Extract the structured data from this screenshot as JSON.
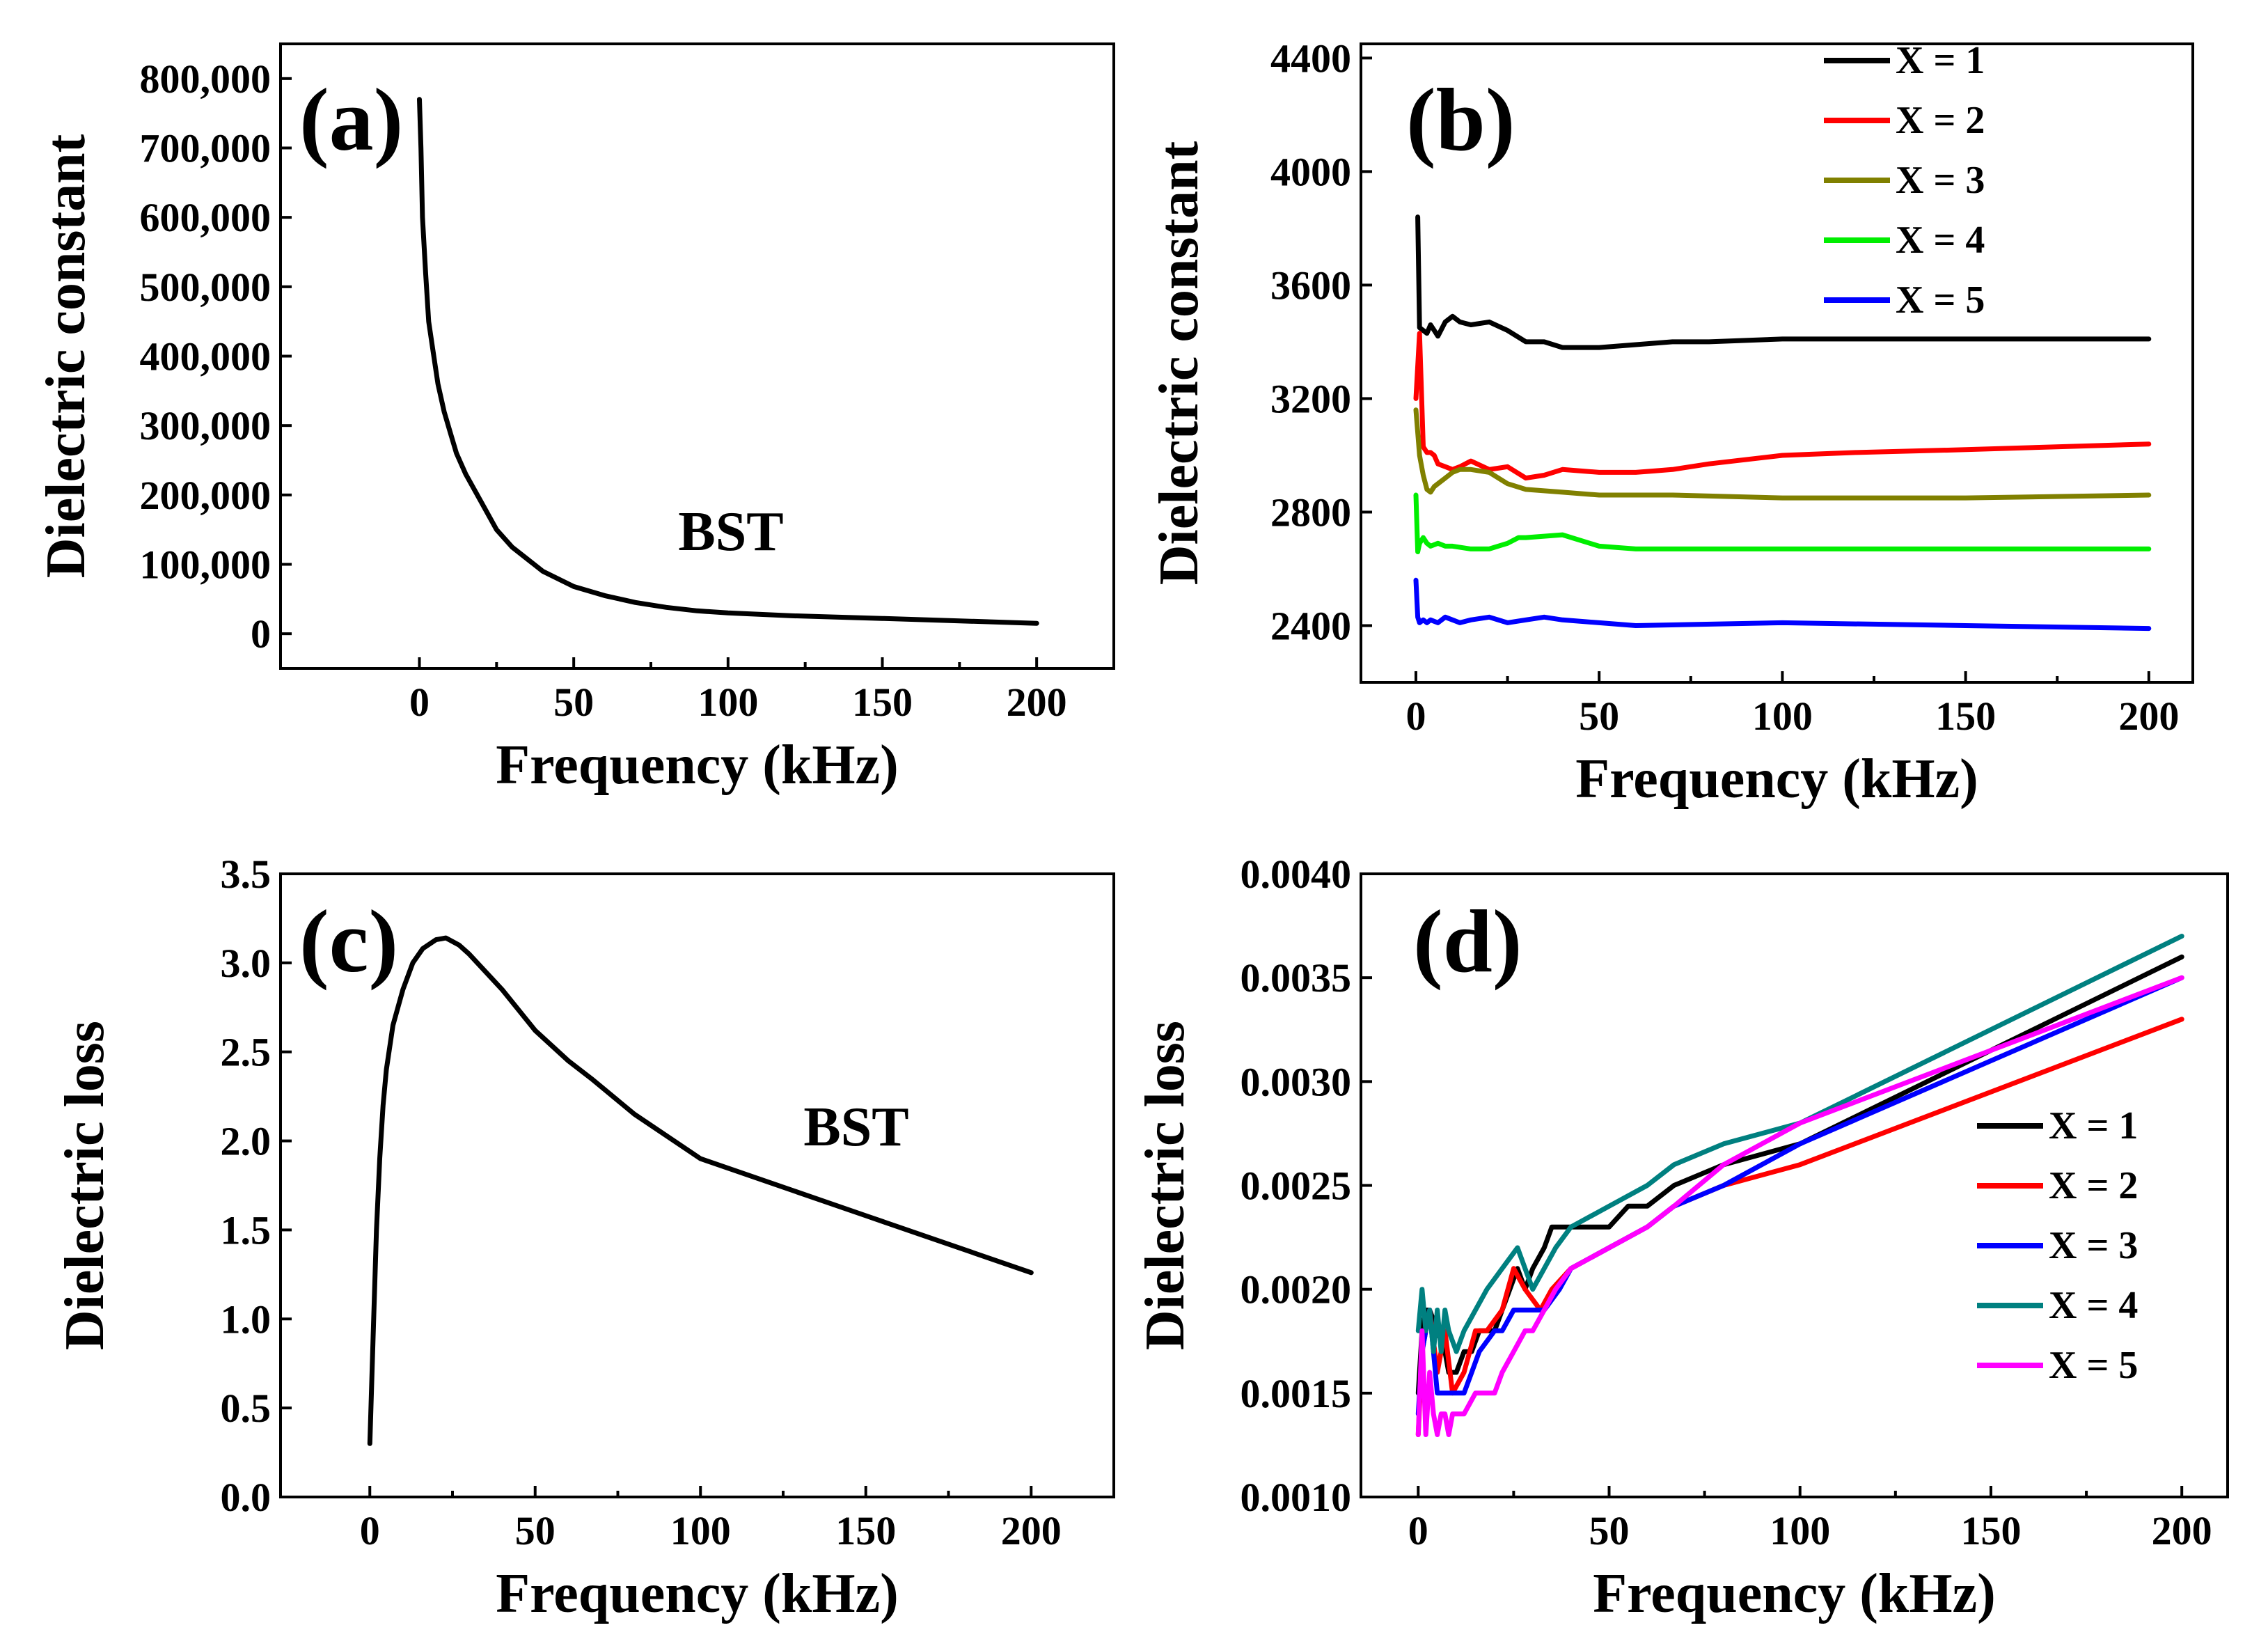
{
  "chart_data": [
    {
      "id": "a",
      "type": "line",
      "panel_label": "(a)",
      "annotation": "BST",
      "xlabel": "Frequency (kHz)",
      "ylabel": "Dielectric constant",
      "xlim": [
        -45,
        225
      ],
      "ylim": [
        -50000,
        850000
      ],
      "xticks": [
        0,
        50,
        100,
        150,
        200
      ],
      "xtick_labels": [
        "0",
        "50",
        "100",
        "150",
        "200"
      ],
      "yticks": [
        0,
        100000,
        200000,
        300000,
        400000,
        500000,
        600000,
        700000,
        800000
      ],
      "ytick_labels": [
        "0",
        "100,000",
        "200,000",
        "300,000",
        "400,000",
        "500,000",
        "600,000",
        "700,000",
        "800,000"
      ],
      "series": [
        {
          "name": "BST",
          "color": "#000000",
          "x": [
            0,
            0.5,
            1,
            2,
            3,
            4,
            6,
            8,
            10,
            12,
            15,
            20,
            25,
            30,
            40,
            50,
            60,
            70,
            80,
            90,
            100,
            120,
            150,
            200
          ],
          "y": [
            770000,
            700000,
            600000,
            520000,
            450000,
            420000,
            360000,
            320000,
            290000,
            260000,
            230000,
            190000,
            150000,
            125000,
            90000,
            68000,
            55000,
            45000,
            38000,
            33000,
            30000,
            26000,
            22000,
            15000
          ]
        }
      ]
    },
    {
      "id": "b",
      "type": "line",
      "panel_label": "(b)",
      "xlabel": "Frequency (kHz)",
      "ylabel": "Dielectric constant",
      "xlim": [
        -15,
        212
      ],
      "ylim": [
        2200,
        4450
      ],
      "xticks": [
        0,
        50,
        100,
        150,
        200
      ],
      "xtick_labels": [
        "0",
        "50",
        "100",
        "150",
        "200"
      ],
      "yticks": [
        2400,
        2800,
        3200,
        3600,
        4000,
        4400
      ],
      "ytick_labels": [
        "2400",
        "2800",
        "3200",
        "3600",
        "4000",
        "4400"
      ],
      "legend_position": "top-right",
      "series": [
        {
          "name": "X = 1",
          "color": "#000000",
          "x": [
            0.5,
            1,
            2,
            3,
            4,
            5,
            6,
            8,
            10,
            12,
            15,
            20,
            25,
            30,
            35,
            40,
            45,
            50,
            60,
            70,
            80,
            100,
            120,
            150,
            200
          ],
          "y": [
            3840,
            3450,
            3440,
            3430,
            3460,
            3440,
            3420,
            3470,
            3490,
            3470,
            3460,
            3470,
            3440,
            3400,
            3400,
            3380,
            3380,
            3380,
            3390,
            3400,
            3400,
            3410,
            3410,
            3410,
            3410
          ]
        },
        {
          "name": "X = 2",
          "color": "#ff0000",
          "x": [
            0,
            1,
            2,
            3,
            4,
            5,
            6,
            8,
            10,
            12,
            15,
            20,
            25,
            30,
            35,
            40,
            50,
            60,
            65,
            70,
            80,
            100,
            120,
            150,
            200
          ],
          "y": [
            3200,
            3430,
            3030,
            3010,
            3010,
            3000,
            2970,
            2960,
            2950,
            2960,
            2980,
            2950,
            2960,
            2920,
            2930,
            2950,
            2940,
            2940,
            2945,
            2950,
            2970,
            3000,
            3010,
            3020,
            3040
          ]
        },
        {
          "name": "X = 3",
          "color": "#808000",
          "x": [
            0,
            1,
            2,
            3,
            4,
            5,
            6,
            8,
            10,
            12,
            15,
            20,
            25,
            30,
            40,
            50,
            60,
            70,
            100,
            150,
            200
          ],
          "y": [
            3160,
            3000,
            2930,
            2880,
            2870,
            2890,
            2900,
            2920,
            2940,
            2950,
            2950,
            2940,
            2900,
            2880,
            2870,
            2860,
            2860,
            2860,
            2850,
            2850,
            2860
          ]
        },
        {
          "name": "X = 4",
          "color": "#00ee00",
          "x": [
            0,
            0.5,
            1,
            2,
            3,
            4,
            6,
            8,
            10,
            15,
            20,
            25,
            28,
            30,
            40,
            50,
            60,
            100,
            150,
            200
          ],
          "y": [
            2860,
            2660,
            2690,
            2710,
            2690,
            2680,
            2690,
            2680,
            2680,
            2670,
            2670,
            2690,
            2710,
            2710,
            2720,
            2680,
            2670,
            2670,
            2670,
            2670
          ]
        },
        {
          "name": "X = 5",
          "color": "#0000ff",
          "x": [
            0,
            0.5,
            1,
            2,
            3,
            4,
            6,
            8,
            10,
            12,
            15,
            20,
            25,
            30,
            35,
            40,
            50,
            60,
            100,
            150,
            200
          ],
          "y": [
            2560,
            2430,
            2410,
            2420,
            2410,
            2420,
            2410,
            2430,
            2420,
            2410,
            2420,
            2430,
            2410,
            2420,
            2430,
            2420,
            2410,
            2400,
            2410,
            2400,
            2390
          ]
        }
      ]
    },
    {
      "id": "c",
      "type": "line",
      "panel_label": "(c)",
      "annotation": "BST",
      "xlabel": "Frequency (kHz)",
      "ylabel": "Dielectric loss",
      "xlim": [
        -27,
        225
      ],
      "ylim": [
        0,
        3.5
      ],
      "xticks": [
        0,
        50,
        100,
        150,
        200
      ],
      "xtick_labels": [
        "0",
        "50",
        "100",
        "150",
        "200"
      ],
      "yticks": [
        0.0,
        0.5,
        1.0,
        1.5,
        2.0,
        2.5,
        3.0,
        3.5
      ],
      "ytick_labels": [
        "0.0",
        "0.5",
        "1.0",
        "1.5",
        "2.0",
        "2.5",
        "3.0",
        "3.5"
      ],
      "series": [
        {
          "name": "BST",
          "color": "#000000",
          "x": [
            0,
            1,
            2,
            3,
            4,
            5,
            7,
            10,
            13,
            16,
            20,
            23,
            27,
            30,
            35,
            40,
            50,
            60,
            67,
            80,
            100,
            150,
            200
          ],
          "y": [
            0.3,
            0.9,
            1.5,
            1.9,
            2.2,
            2.4,
            2.65,
            2.85,
            3.0,
            3.08,
            3.13,
            3.14,
            3.1,
            3.05,
            2.95,
            2.85,
            2.62,
            2.45,
            2.35,
            2.15,
            1.9,
            1.58,
            1.26
          ]
        }
      ]
    },
    {
      "id": "d",
      "type": "line",
      "panel_label": "(d)",
      "xlabel": "Frequency (kHz)",
      "ylabel": "Dielectric loss",
      "xlim": [
        -15,
        212
      ],
      "ylim": [
        0.001,
        0.004
      ],
      "xticks": [
        0,
        50,
        100,
        150,
        200
      ],
      "xtick_labels": [
        "0",
        "50",
        "100",
        "150",
        "200"
      ],
      "yticks": [
        0.001,
        0.0015,
        0.002,
        0.0025,
        0.003,
        0.0035,
        0.004
      ],
      "ytick_labels": [
        "0.0010",
        "0.0015",
        "0.0020",
        "0.0025",
        "0.0030",
        "0.0035",
        "0.0040"
      ],
      "legend_position": "right",
      "series": [
        {
          "name": "X = 1",
          "color": "#000000",
          "x": [
            0,
            1,
            2,
            3,
            5,
            7,
            8,
            10,
            12,
            14,
            16,
            20,
            22,
            26,
            28,
            30,
            33,
            35,
            40,
            45,
            50,
            55,
            60,
            67,
            80,
            100,
            200
          ],
          "y": [
            0.0015,
            0.0018,
            0.0019,
            0.0019,
            0.0018,
            0.0017,
            0.0016,
            0.0016,
            0.0017,
            0.0017,
            0.0018,
            0.0018,
            0.0019,
            0.0021,
            0.002,
            0.0021,
            0.0022,
            0.0023,
            0.0023,
            0.0023,
            0.0023,
            0.0024,
            0.0024,
            0.0025,
            0.0026,
            0.0027,
            0.0036
          ]
        },
        {
          "name": "X = 2",
          "color": "#ff0000",
          "x": [
            0,
            1,
            2,
            3,
            5,
            7,
            9,
            12,
            15,
            18,
            22,
            25,
            28,
            32,
            35,
            40,
            50,
            60,
            67,
            80,
            100,
            200
          ],
          "y": [
            0.0013,
            0.0017,
            0.0018,
            0.0019,
            0.0016,
            0.0018,
            0.0015,
            0.0016,
            0.0018,
            0.0018,
            0.0019,
            0.0021,
            0.002,
            0.0019,
            0.002,
            0.0021,
            0.0022,
            0.0023,
            0.0024,
            0.0025,
            0.0026,
            0.0033
          ]
        },
        {
          "name": "X = 3",
          "color": "#0000ff",
          "x": [
            0,
            1,
            2,
            3,
            5,
            7,
            9,
            12,
            14,
            16,
            20,
            22,
            25,
            28,
            30,
            33,
            37,
            40,
            50,
            60,
            67,
            80,
            100,
            200
          ],
          "y": [
            0.0014,
            0.0017,
            0.0018,
            0.0019,
            0.0015,
            0.0015,
            0.0015,
            0.0015,
            0.0016,
            0.0017,
            0.0018,
            0.0018,
            0.0019,
            0.0019,
            0.0019,
            0.0019,
            0.002,
            0.0021,
            0.0022,
            0.0023,
            0.0024,
            0.0025,
            0.0027,
            0.0035
          ]
        },
        {
          "name": "X = 4",
          "color": "#008080",
          "x": [
            0,
            1,
            2,
            3,
            4,
            5,
            6,
            7,
            8,
            10,
            12,
            15,
            18,
            22,
            26,
            28,
            30,
            33,
            36,
            40,
            50,
            60,
            67,
            80,
            100,
            200
          ],
          "y": [
            0.0018,
            0.002,
            0.0018,
            0.0019,
            0.0017,
            0.0019,
            0.0017,
            0.0019,
            0.0018,
            0.0017,
            0.0018,
            0.0019,
            0.002,
            0.0021,
            0.0022,
            0.0021,
            0.002,
            0.0021,
            0.0022,
            0.0023,
            0.0024,
            0.0025,
            0.0026,
            0.0027,
            0.0028,
            0.0037
          ]
        },
        {
          "name": "X = 5",
          "color": "#ff00ff",
          "x": [
            0,
            1,
            2,
            3,
            4,
            5,
            6,
            7,
            8,
            9,
            10,
            12,
            15,
            18,
            20,
            22,
            25,
            28,
            30,
            33,
            36,
            40,
            50,
            60,
            67,
            80,
            100,
            200
          ],
          "y": [
            0.0013,
            0.0018,
            0.0013,
            0.0016,
            0.0014,
            0.0013,
            0.0014,
            0.0014,
            0.0013,
            0.0014,
            0.0014,
            0.0014,
            0.0015,
            0.0015,
            0.0015,
            0.0016,
            0.0017,
            0.0018,
            0.0018,
            0.0019,
            0.002,
            0.0021,
            0.0022,
            0.0023,
            0.0024,
            0.0026,
            0.0028,
            0.0035
          ]
        }
      ]
    }
  ]
}
